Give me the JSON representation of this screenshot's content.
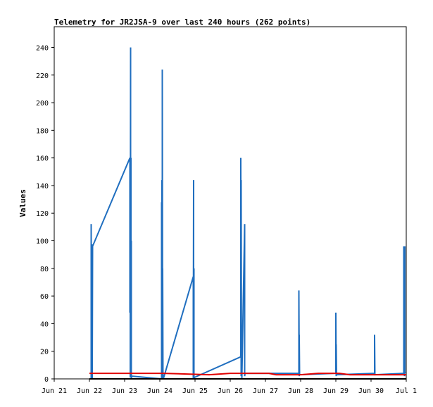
{
  "chart_data": {
    "type": "line",
    "title": "Telemetry for JR2JSA-9 over last 240 hours (262 points)",
    "ylabel": "Values",
    "xlabel": "",
    "ylim": [
      0,
      255
    ],
    "yticks": [
      0,
      20,
      40,
      60,
      80,
      100,
      120,
      140,
      160,
      180,
      200,
      220,
      240
    ],
    "xlim_days": [
      0,
      10
    ],
    "xtick_labels": [
      "Jun 21",
      "Jun 22",
      "Jun 23",
      "Jun 24",
      "Jun 25",
      "Jun 26",
      "Jun 27",
      "Jun 28",
      "Jun 29",
      "Jun 30",
      "Jul 1"
    ],
    "grid": false,
    "colors": {
      "series_blue": "#1f6ebf",
      "series_red": "#e00000",
      "axis": "#000000"
    },
    "series": [
      {
        "color": "#1f6ebf",
        "x": [
          1.05,
          1.05,
          1.06,
          1.06,
          1.07,
          1.07,
          1.08,
          1.08,
          1.09,
          2.15,
          2.15,
          2.16,
          2.16,
          2.17,
          2.17,
          2.18,
          2.18,
          2.19,
          2.19,
          2.2,
          3.05,
          3.05,
          3.06,
          3.06,
          3.07,
          3.07,
          3.08,
          3.08,
          3.09,
          3.09,
          3.1,
          3.1,
          3.95,
          3.95,
          3.96,
          3.96,
          3.97,
          3.97,
          3.98,
          3.98,
          5.3,
          5.3,
          5.31,
          5.31,
          5.32,
          5.33,
          5.33,
          5.41,
          5.41,
          5.42,
          6.95,
          6.95,
          6.96,
          6.96,
          6.97,
          8.0,
          8.0,
          8.01,
          8.01,
          8.02,
          9.1,
          9.1,
          9.11,
          9.93,
          9.93,
          9.94,
          9.94,
          9.95,
          9.95,
          9.96,
          9.96,
          9.97
        ],
        "y": [
          0,
          112,
          2,
          97,
          97,
          1,
          97,
          0,
          96,
          160,
          48,
          160,
          1,
          240,
          3,
          160,
          50,
          100,
          0,
          2,
          0,
          128,
          4,
          144,
          2,
          224,
          1,
          80,
          0,
          3,
          2,
          0,
          74,
          0,
          144,
          3,
          80,
          0,
          0,
          1,
          16,
          160,
          2,
          144,
          2,
          4,
          0,
          112,
          2,
          4,
          4,
          64,
          2,
          32,
          3,
          4,
          48,
          2,
          25,
          3,
          4,
          32,
          3,
          4,
          96,
          4,
          48,
          96,
          2,
          96,
          4,
          5
        ]
      },
      {
        "color": "#e00000",
        "x": [
          1.0,
          2.2,
          3.1,
          4.4,
          5.0,
          6.1,
          6.3,
          7.0,
          7.5,
          8.1,
          8.4,
          9.0,
          9.4,
          10.0
        ],
        "y": [
          4,
          4,
          4,
          3,
          4,
          4,
          3,
          3,
          4,
          4,
          3,
          3,
          3,
          3
        ]
      },
      {
        "color": "#000000",
        "x": [
          1.0,
          10.0
        ],
        "y": [
          0,
          0
        ]
      }
    ]
  }
}
